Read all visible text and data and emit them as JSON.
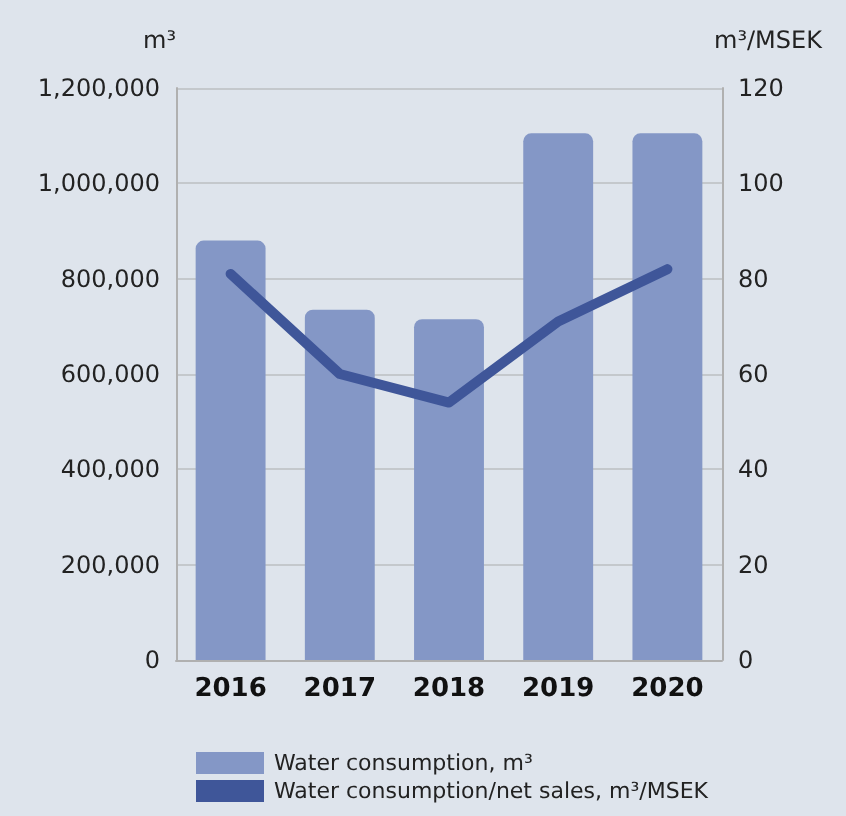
{
  "chart_data": {
    "type": "bar",
    "categories": [
      "2016",
      "2017",
      "2018",
      "2019",
      "2020"
    ],
    "ylabel": "m³",
    "y2label": "m³/MSEK",
    "series": [
      {
        "name": "Water consumption, m³",
        "color": "#8497c6",
        "values": [
          880000,
          735000,
          715000,
          1105000,
          1105000
        ]
      },
      {
        "name": "Water consumption/net sales, m³/MSEK",
        "type": "line",
        "axis": "y2",
        "color": "#3f5699",
        "values": [
          81,
          60,
          54,
          71,
          82
        ]
      }
    ],
    "ylim": [
      0,
      1200000
    ],
    "yticks": [
      0,
      {
        "value": 200000,
        "label": "200,000"
      },
      {
        "value": 400000,
        "label": "400,000"
      },
      {
        "value": 600000,
        "label": "600,000"
      },
      {
        "value": 800000,
        "label": "800,000"
      },
      {
        "value": 1000000,
        "label": "1,000,000"
      },
      {
        "value": 1200000,
        "label": "1,200,000"
      }
    ],
    "y2lim": [
      0,
      120
    ],
    "y2ticks": [
      0,
      20,
      40,
      60,
      80,
      100,
      120
    ],
    "grid": "y",
    "legend": "bottom",
    "marker": "none"
  }
}
